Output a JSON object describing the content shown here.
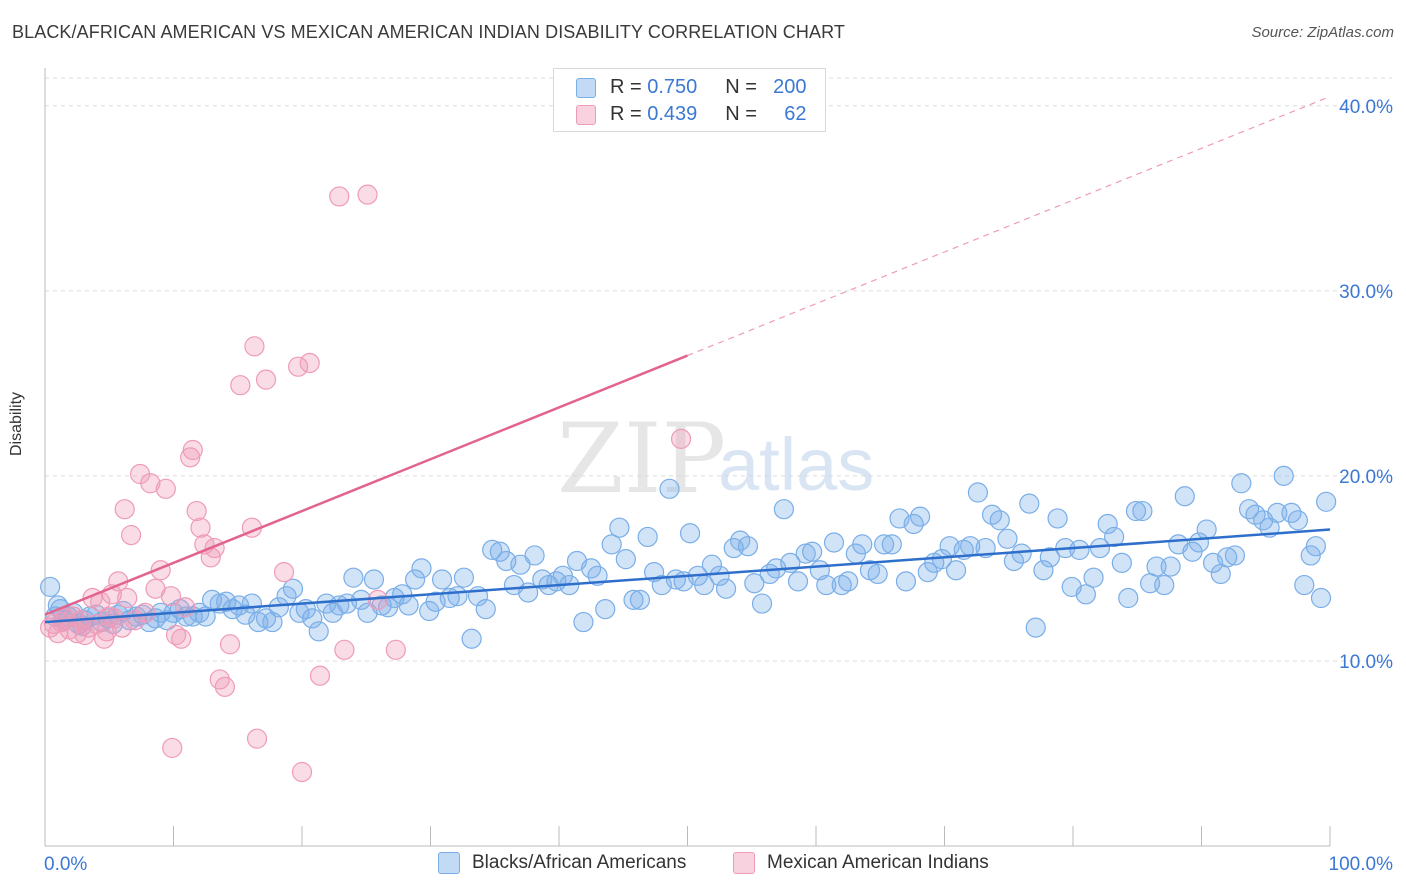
{
  "header": {
    "title": "BLACK/AFRICAN AMERICAN VS MEXICAN AMERICAN INDIAN DISABILITY CORRELATION CHART",
    "source": "Source: ZipAtlas.com"
  },
  "watermark": {
    "left": "ZIP",
    "right": "atlas"
  },
  "legend": {
    "rows": [
      {
        "r_label": "R =",
        "r_value": "0.750",
        "n_label": "N =",
        "n_value": "200"
      },
      {
        "r_label": "R =",
        "r_value": "0.439",
        "n_label": "N =",
        "n_value": "62"
      }
    ]
  },
  "colors": {
    "blue": "#7aaee8",
    "blue_fill": "rgba(122,174,232,0.35)",
    "blue_line": "#2f6fcc",
    "pink": "#ef9bb8",
    "pink_fill": "rgba(239,155,184,0.35)",
    "pink_line": "#e2648e",
    "axis_text": "#3b78d4",
    "grid": "#dcdcdc"
  },
  "chart_data": {
    "type": "scatter",
    "title": "BLACK/AFRICAN AMERICAN VS MEXICAN AMERICAN INDIAN DISABILITY CORRELATION CHART",
    "xlabel": "",
    "ylabel": "Disability",
    "xlim": [
      0,
      100
    ],
    "ylim": [
      0,
      41.5
    ],
    "x_tick_labels": [
      "0.0%",
      "100.0%"
    ],
    "y_ticks": [
      10,
      20,
      30,
      40
    ],
    "y_tick_labels": [
      "10.0%",
      "20.0%",
      "30.0%",
      "40.0%"
    ],
    "grid": true,
    "legend_position": "top-center",
    "series": [
      {
        "name": "Blacks/African Americans",
        "color": "#7aaee8",
        "trend": {
          "x0": 0,
          "y0": 12.1,
          "x1": 100,
          "y1": 17.1
        },
        "points": [
          [
            0.4,
            14.0
          ],
          [
            0.8,
            12.4
          ],
          [
            1.0,
            13.0
          ],
          [
            1.5,
            12.2
          ],
          [
            1.8,
            12.4
          ],
          [
            2.2,
            12.6
          ],
          [
            2.6,
            12.0
          ],
          [
            3.1,
            12.2
          ],
          [
            3.5,
            12.4
          ],
          [
            4.0,
            12.5
          ],
          [
            4.4,
            12.1
          ],
          [
            4.9,
            12.3
          ],
          [
            5.3,
            12.0
          ],
          [
            5.7,
            12.5
          ],
          [
            6.1,
            12.7
          ],
          [
            6.6,
            12.2
          ],
          [
            7.1,
            12.4
          ],
          [
            7.6,
            12.5
          ],
          [
            8.1,
            12.1
          ],
          [
            8.6,
            12.3
          ],
          [
            9.0,
            12.6
          ],
          [
            9.5,
            12.2
          ],
          [
            10.0,
            12.6
          ],
          [
            10.5,
            12.8
          ],
          [
            11.0,
            12.4
          ],
          [
            11.5,
            12.4
          ],
          [
            12.0,
            12.6
          ],
          [
            12.5,
            12.4
          ],
          [
            13.0,
            13.3
          ],
          [
            13.6,
            13.1
          ],
          [
            14.1,
            13.2
          ],
          [
            14.6,
            12.8
          ],
          [
            15.1,
            13.0
          ],
          [
            15.6,
            12.5
          ],
          [
            16.1,
            13.1
          ],
          [
            16.6,
            12.1
          ],
          [
            17.2,
            12.3
          ],
          [
            17.7,
            12.1
          ],
          [
            18.2,
            12.9
          ],
          [
            18.8,
            13.5
          ],
          [
            19.3,
            13.9
          ],
          [
            19.8,
            12.6
          ],
          [
            20.3,
            12.8
          ],
          [
            20.8,
            12.3
          ],
          [
            21.3,
            11.6
          ],
          [
            21.9,
            13.1
          ],
          [
            22.4,
            12.6
          ],
          [
            22.9,
            13.0
          ],
          [
            23.5,
            13.1
          ],
          [
            24.0,
            14.5
          ],
          [
            24.6,
            13.3
          ],
          [
            25.1,
            12.6
          ],
          [
            25.6,
            14.4
          ],
          [
            26.2,
            13.0
          ],
          [
            26.7,
            12.9
          ],
          [
            27.2,
            13.4
          ],
          [
            27.8,
            13.6
          ],
          [
            28.3,
            13.0
          ],
          [
            28.8,
            14.4
          ],
          [
            29.3,
            15.0
          ],
          [
            29.9,
            12.7
          ],
          [
            30.4,
            13.2
          ],
          [
            30.9,
            14.4
          ],
          [
            31.5,
            13.4
          ],
          [
            32.1,
            13.5
          ],
          [
            32.6,
            14.5
          ],
          [
            33.2,
            11.2
          ],
          [
            33.7,
            13.5
          ],
          [
            34.3,
            12.8
          ],
          [
            34.8,
            16.0
          ],
          [
            35.4,
            15.9
          ],
          [
            35.9,
            15.4
          ],
          [
            36.5,
            14.1
          ],
          [
            37.0,
            15.2
          ],
          [
            37.6,
            13.7
          ],
          [
            38.1,
            15.7
          ],
          [
            38.7,
            14.4
          ],
          [
            39.2,
            14.1
          ],
          [
            39.8,
            14.3
          ],
          [
            40.3,
            14.6
          ],
          [
            40.8,
            14.1
          ],
          [
            41.4,
            15.4
          ],
          [
            41.9,
            12.1
          ],
          [
            42.5,
            15.0
          ],
          [
            43.0,
            14.6
          ],
          [
            43.6,
            12.8
          ],
          [
            44.1,
            16.3
          ],
          [
            44.7,
            17.2
          ],
          [
            45.2,
            15.5
          ],
          [
            45.8,
            13.3
          ],
          [
            46.3,
            13.3
          ],
          [
            46.9,
            16.7
          ],
          [
            47.4,
            14.8
          ],
          [
            48.0,
            14.1
          ],
          [
            48.6,
            19.3
          ],
          [
            49.1,
            14.4
          ],
          [
            49.7,
            14.3
          ],
          [
            50.2,
            16.9
          ],
          [
            50.8,
            14.6
          ],
          [
            51.3,
            14.1
          ],
          [
            51.9,
            15.2
          ],
          [
            52.5,
            14.6
          ],
          [
            53.0,
            13.9
          ],
          [
            53.6,
            16.1
          ],
          [
            54.1,
            16.5
          ],
          [
            54.7,
            16.2
          ],
          [
            55.2,
            14.2
          ],
          [
            55.8,
            13.1
          ],
          [
            56.4,
            14.7
          ],
          [
            56.9,
            15.0
          ],
          [
            57.5,
            18.2
          ],
          [
            58.0,
            15.3
          ],
          [
            58.6,
            14.3
          ],
          [
            59.2,
            15.8
          ],
          [
            59.7,
            15.9
          ],
          [
            60.3,
            14.9
          ],
          [
            60.8,
            14.1
          ],
          [
            61.4,
            16.4
          ],
          [
            62.0,
            14.1
          ],
          [
            62.5,
            14.3
          ],
          [
            63.1,
            15.8
          ],
          [
            63.6,
            16.3
          ],
          [
            64.2,
            14.9
          ],
          [
            64.8,
            14.7
          ],
          [
            65.3,
            16.3
          ],
          [
            65.9,
            16.3
          ],
          [
            66.5,
            17.7
          ],
          [
            67.0,
            14.3
          ],
          [
            67.6,
            17.4
          ],
          [
            68.1,
            17.8
          ],
          [
            68.7,
            14.8
          ],
          [
            69.2,
            15.3
          ],
          [
            69.8,
            15.5
          ],
          [
            70.4,
            16.2
          ],
          [
            70.9,
            14.9
          ],
          [
            71.5,
            16.0
          ],
          [
            72.0,
            16.2
          ],
          [
            72.6,
            19.1
          ],
          [
            73.2,
            16.1
          ],
          [
            73.7,
            17.9
          ],
          [
            74.3,
            17.6
          ],
          [
            74.9,
            16.6
          ],
          [
            75.4,
            15.4
          ],
          [
            76.0,
            15.8
          ],
          [
            76.6,
            18.5
          ],
          [
            77.1,
            11.8
          ],
          [
            77.7,
            14.9
          ],
          [
            78.2,
            15.6
          ],
          [
            78.8,
            17.7
          ],
          [
            79.4,
            16.1
          ],
          [
            79.9,
            14.0
          ],
          [
            80.5,
            16.0
          ],
          [
            81.0,
            13.6
          ],
          [
            81.6,
            14.5
          ],
          [
            82.1,
            16.1
          ],
          [
            82.7,
            17.4
          ],
          [
            83.2,
            16.7
          ],
          [
            83.8,
            15.3
          ],
          [
            84.3,
            13.4
          ],
          [
            84.9,
            18.1
          ],
          [
            85.4,
            18.1
          ],
          [
            86.0,
            14.2
          ],
          [
            86.5,
            15.1
          ],
          [
            87.1,
            14.1
          ],
          [
            87.6,
            15.1
          ],
          [
            88.2,
            16.3
          ],
          [
            88.7,
            18.9
          ],
          [
            89.3,
            15.9
          ],
          [
            89.8,
            16.4
          ],
          [
            90.4,
            17.1
          ],
          [
            90.9,
            15.3
          ],
          [
            91.5,
            14.7
          ],
          [
            92.0,
            15.6
          ],
          [
            92.6,
            15.7
          ],
          [
            93.1,
            19.6
          ],
          [
            93.7,
            18.2
          ],
          [
            94.2,
            17.9
          ],
          [
            94.8,
            17.6
          ],
          [
            95.3,
            17.2
          ],
          [
            95.9,
            18.0
          ],
          [
            96.4,
            20.0
          ],
          [
            97.0,
            18.0
          ],
          [
            97.5,
            17.6
          ],
          [
            98.0,
            14.1
          ],
          [
            98.5,
            15.7
          ],
          [
            98.9,
            16.2
          ],
          [
            99.3,
            13.4
          ],
          [
            99.7,
            18.6
          ],
          [
            1.2,
            12.8
          ],
          [
            2.9,
            11.9
          ]
        ]
      },
      {
        "name": "Mexican American Indians",
        "color": "#ef9bb8",
        "trend": {
          "x0": 0,
          "y0": 12.5,
          "x1": 50,
          "y1": 26.5
        },
        "trend_ext": {
          "x0": 50,
          "y0": 26.5,
          "x1": 100,
          "y1": 40.5
        },
        "points": [
          [
            0.4,
            11.8
          ],
          [
            0.7,
            12.0
          ],
          [
            1.0,
            11.5
          ],
          [
            1.3,
            12.1
          ],
          [
            1.6,
            12.3
          ],
          [
            1.9,
            11.7
          ],
          [
            2.2,
            12.4
          ],
          [
            2.5,
            11.5
          ],
          [
            2.8,
            12.2
          ],
          [
            3.1,
            11.4
          ],
          [
            3.4,
            11.8
          ],
          [
            3.7,
            13.4
          ],
          [
            4.0,
            12.0
          ],
          [
            4.3,
            13.2
          ],
          [
            4.6,
            11.2
          ],
          [
            4.8,
            11.6
          ],
          [
            5.0,
            12.4
          ],
          [
            5.2,
            13.6
          ],
          [
            5.4,
            12.3
          ],
          [
            5.7,
            14.3
          ],
          [
            6.0,
            11.8
          ],
          [
            6.2,
            18.2
          ],
          [
            6.4,
            13.4
          ],
          [
            6.7,
            16.8
          ],
          [
            7.0,
            12.2
          ],
          [
            7.4,
            20.1
          ],
          [
            7.8,
            12.6
          ],
          [
            8.2,
            19.6
          ],
          [
            8.6,
            13.9
          ],
          [
            9.0,
            14.9
          ],
          [
            9.4,
            19.3
          ],
          [
            9.8,
            13.5
          ],
          [
            10.2,
            11.4
          ],
          [
            10.6,
            11.2
          ],
          [
            10.9,
            12.9
          ],
          [
            11.3,
            21.0
          ],
          [
            11.5,
            21.4
          ],
          [
            11.8,
            18.1
          ],
          [
            12.1,
            17.2
          ],
          [
            12.4,
            16.3
          ],
          [
            12.9,
            15.6
          ],
          [
            13.2,
            16.1
          ],
          [
            13.6,
            9.0
          ],
          [
            14.0,
            8.6
          ],
          [
            14.4,
            10.9
          ],
          [
            15.2,
            24.9
          ],
          [
            16.1,
            17.2
          ],
          [
            16.3,
            27.0
          ],
          [
            16.5,
            5.8
          ],
          [
            17.2,
            25.2
          ],
          [
            18.6,
            14.8
          ],
          [
            19.7,
            25.9
          ],
          [
            20.0,
            4.0
          ],
          [
            20.6,
            26.1
          ],
          [
            21.4,
            9.2
          ],
          [
            22.9,
            35.1
          ],
          [
            23.3,
            10.6
          ],
          [
            25.1,
            35.2
          ],
          [
            25.9,
            13.3
          ],
          [
            27.3,
            10.6
          ],
          [
            9.9,
            5.3
          ],
          [
            49.5,
            22.0
          ]
        ]
      }
    ]
  },
  "bottom_legend": {
    "items": [
      {
        "label": "Blacks/African Americans"
      },
      {
        "label": "Mexican American Indians"
      }
    ]
  }
}
